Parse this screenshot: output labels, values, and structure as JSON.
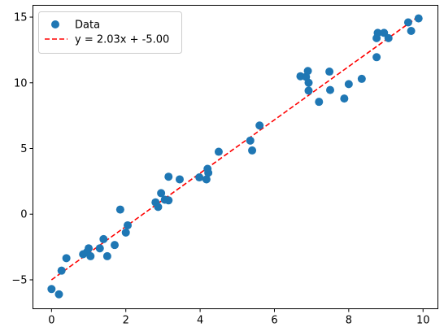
{
  "chart_data": {
    "type": "scatter",
    "title": "",
    "xlabel": "",
    "ylabel": "",
    "xlim": [
      -0.5,
      10.4
    ],
    "ylim": [
      -7.2,
      15.9
    ],
    "grid": false,
    "legend_position": "top-left",
    "x_ticks": [
      0,
      2,
      4,
      6,
      8,
      10
    ],
    "y_ticks": [
      -5,
      0,
      5,
      10,
      15
    ],
    "x_tick_labels": [
      "0",
      "2",
      "4",
      "6",
      "8",
      "10"
    ],
    "y_tick_labels": [
      "−5",
      "0",
      "5",
      "10",
      "15"
    ],
    "series": [
      {
        "name": "Data",
        "kind": "scatter",
        "color": "#1f77b4",
        "points": [
          [
            0.0,
            -5.7
          ],
          [
            0.2,
            -6.1
          ],
          [
            0.27,
            -4.3
          ],
          [
            0.4,
            -3.35
          ],
          [
            0.85,
            -3.05
          ],
          [
            0.95,
            -2.9
          ],
          [
            1.0,
            -2.6
          ],
          [
            1.05,
            -3.2
          ],
          [
            1.3,
            -2.6
          ],
          [
            1.4,
            -1.9
          ],
          [
            1.5,
            -3.2
          ],
          [
            1.7,
            -2.35
          ],
          [
            1.85,
            0.35
          ],
          [
            2.0,
            -1.4
          ],
          [
            2.05,
            -0.85
          ],
          [
            2.8,
            0.9
          ],
          [
            2.87,
            0.55
          ],
          [
            2.95,
            1.6
          ],
          [
            3.05,
            1.1
          ],
          [
            3.15,
            1.05
          ],
          [
            3.15,
            2.85
          ],
          [
            3.45,
            2.65
          ],
          [
            3.98,
            2.8
          ],
          [
            4.17,
            2.65
          ],
          [
            4.2,
            3.45
          ],
          [
            4.22,
            3.15
          ],
          [
            4.5,
            4.75
          ],
          [
            5.35,
            5.6
          ],
          [
            5.4,
            4.85
          ],
          [
            5.6,
            6.75
          ],
          [
            6.7,
            10.5
          ],
          [
            6.85,
            10.45
          ],
          [
            6.9,
            10.9
          ],
          [
            6.92,
            10.0
          ],
          [
            6.92,
            9.4
          ],
          [
            7.2,
            8.55
          ],
          [
            7.48,
            10.85
          ],
          [
            7.5,
            9.45
          ],
          [
            7.88,
            8.8
          ],
          [
            8.0,
            9.9
          ],
          [
            8.35,
            10.3
          ],
          [
            8.75,
            11.95
          ],
          [
            8.75,
            13.4
          ],
          [
            8.78,
            13.8
          ],
          [
            8.95,
            13.8
          ],
          [
            9.07,
            13.4
          ],
          [
            9.6,
            14.6
          ],
          [
            9.68,
            13.95
          ],
          [
            9.88,
            14.9
          ]
        ]
      },
      {
        "name": "y = 2.03x + -5.00",
        "kind": "line",
        "style": "dashed",
        "color": "#ff0000",
        "slope": 2.03,
        "intercept": -5.0,
        "x_range": [
          0.0,
          9.88
        ]
      }
    ]
  }
}
